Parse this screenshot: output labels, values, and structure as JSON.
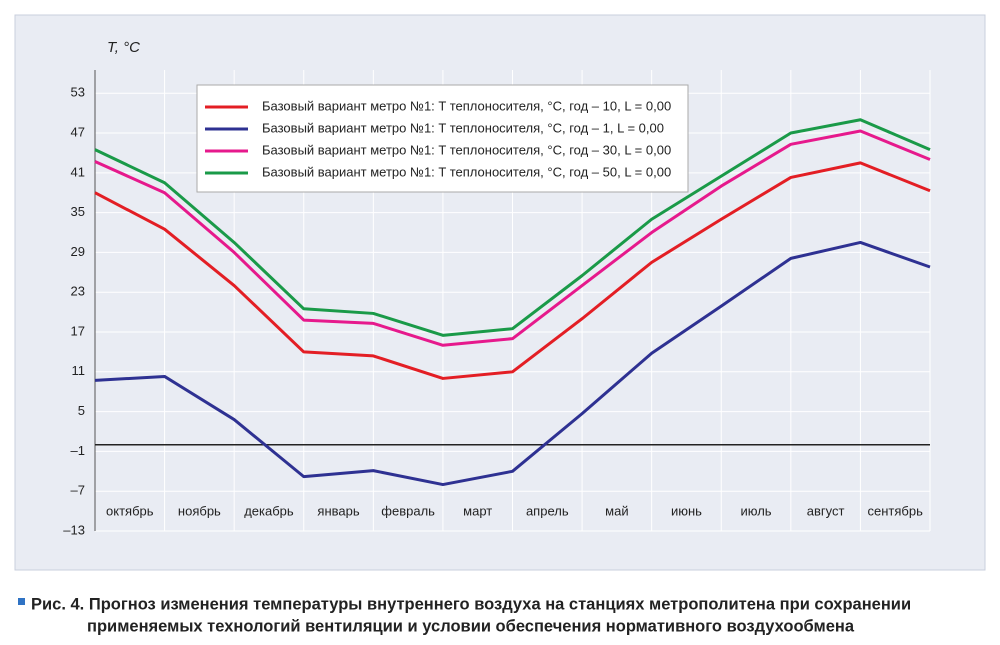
{
  "chart_data": {
    "type": "line",
    "y_label": "T, °C",
    "caption": [
      "Рис. 4. Прогноз изменения температуры внутреннего воздуха на станциях метрополитена при сохранении",
      "применяемых технологий вентиляции и условии обеспечения нормативного воздухообмена"
    ],
    "categories": [
      "октябрь",
      "ноябрь",
      "декабрь",
      "январь",
      "февраль",
      "март",
      "апрель",
      "май",
      "июнь",
      "июль",
      "август",
      "сентябрь",
      null
    ],
    "series": [
      {
        "name": "Базовый вариант метро №1: T теплоносителя, °C, год – 10, L = 0,00",
        "color": "#e31e24",
        "values": [
          38,
          32.5,
          24,
          14,
          13.4,
          10,
          11,
          19,
          27.5,
          34,
          40.3,
          42.5,
          38.3
        ]
      },
      {
        "name": "Базовый вариант метро №1: T теплоносителя, °C, год – 1, L = 0,00",
        "color": "#2e3192",
        "values": [
          9.7,
          10.3,
          3.8,
          -4.8,
          -3.9,
          -6,
          -4,
          4.7,
          13.8,
          20.9,
          28.1,
          30.5,
          26.8
        ]
      },
      {
        "name": "Базовый вариант метро №1: T теплоносителя, °C, год – 30, L = 0,00",
        "color": "#e6198c",
        "values": [
          42.7,
          38,
          29,
          18.8,
          18.3,
          15,
          16,
          24,
          32,
          39,
          45.3,
          47.3,
          43
        ]
      },
      {
        "name": "Базовый вариант метро №1: T теплоносителя, °C, год – 50, L = 0,00",
        "color": "#1a9a48",
        "values": [
          44.5,
          39.5,
          30.5,
          20.5,
          19.8,
          16.5,
          17.5,
          25.5,
          34,
          40.5,
          47,
          49,
          44.5
        ]
      }
    ],
    "ylim": [
      -13,
      56.5
    ],
    "yticks": [
      {
        "value": -13,
        "label": "–13"
      },
      {
        "value": -7,
        "label": "–7"
      },
      {
        "value": -1,
        "label": "–1"
      },
      5,
      11,
      17,
      23,
      29,
      35,
      41,
      47,
      53
    ],
    "reference_line": 0,
    "grid": true
  }
}
